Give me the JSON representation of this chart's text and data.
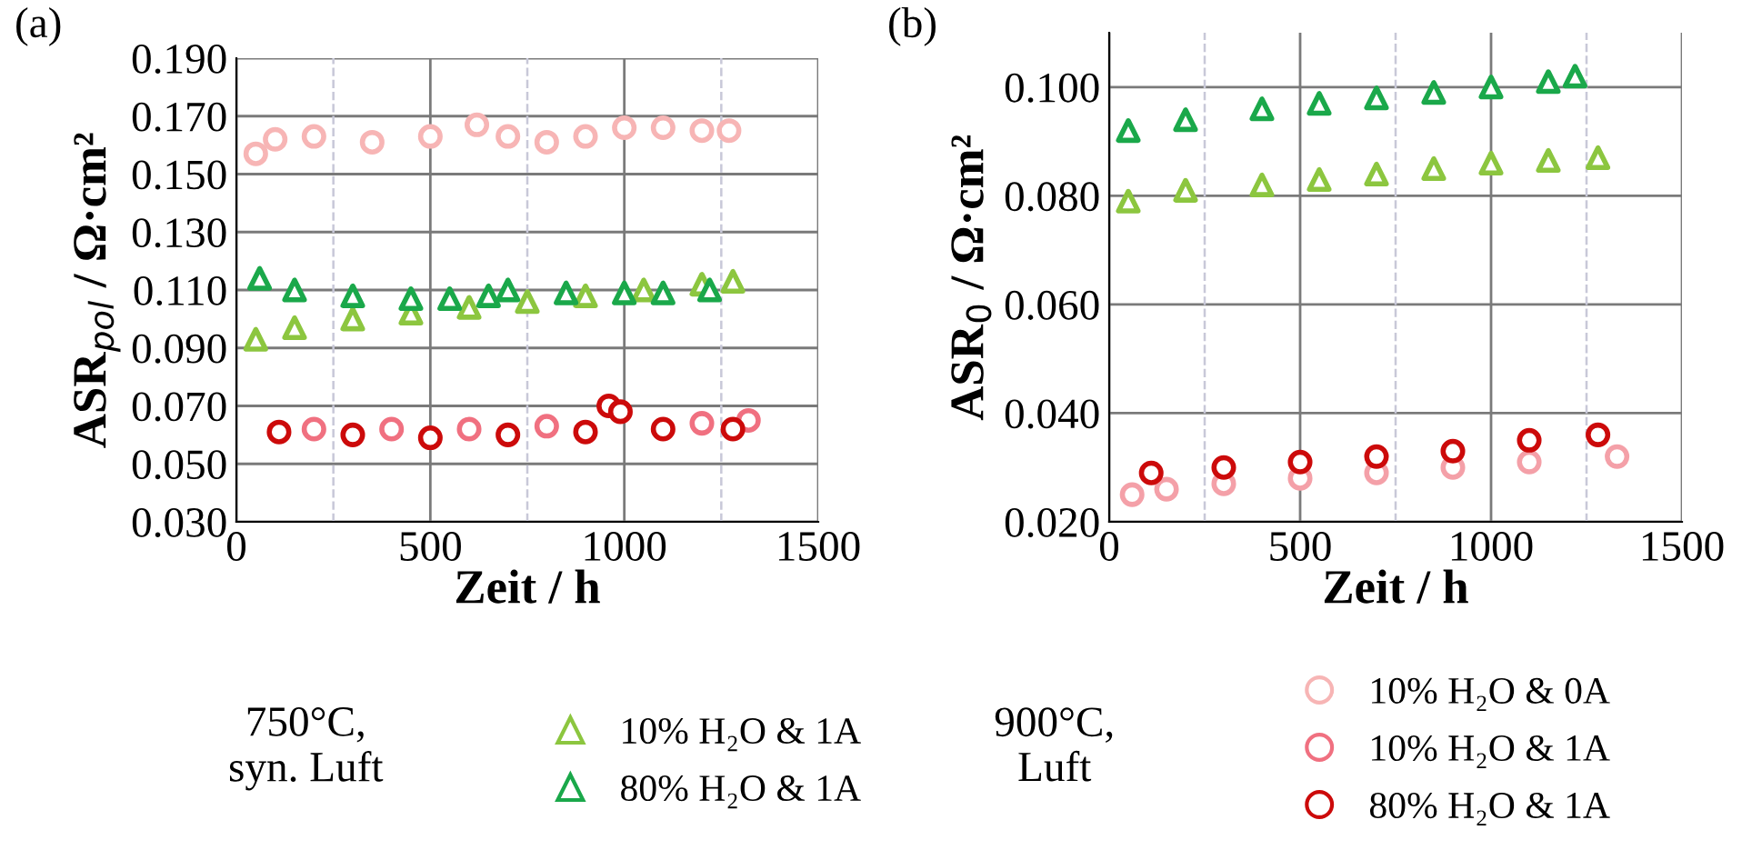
{
  "chart_data": [
    {
      "type": "scatter",
      "title": "(a)",
      "xlabel": "Zeit / h",
      "ylabel": "ASR$_{pol}$ / Ω·cm²",
      "xlim": [
        0,
        1500
      ],
      "xticks": [
        0,
        500,
        1000,
        1500
      ],
      "ylim": [
        0.03,
        0.19
      ],
      "yticks": [
        {
          "value": 0.03,
          "label": "0.030"
        },
        {
          "value": 0.05,
          "label": "0.050"
        },
        {
          "value": 0.07,
          "label": "0.070"
        },
        {
          "value": 0.09,
          "label": "0.090"
        },
        {
          "value": 0.11,
          "label": "0.110"
        },
        {
          "value": 0.13,
          "label": "0.130"
        },
        {
          "value": 0.15,
          "label": "0.150"
        },
        {
          "value": 0.17,
          "label": "0.170"
        },
        {
          "value": 0.19,
          "label": "0.190"
        }
      ],
      "grid": true,
      "legend": "bottom",
      "ref_lines": [
        {
          "axis": "x",
          "value": 250,
          "color": "#c8c8d8",
          "line_style": "dashed"
        },
        {
          "axis": "x",
          "value": 750,
          "color": "#c8c8d8",
          "line_style": "dashed"
        },
        {
          "axis": "x",
          "value": 1250,
          "color": "#c8c8d8",
          "line_style": "dashed"
        }
      ],
      "annotations": [
        "750°C,\nsyn. Luft",
        "900°C,\nLuft"
      ],
      "series": [
        {
          "name": "10% H₂O & 1A",
          "color": "#8cc63f",
          "marker": "triangle",
          "x": [
            50,
            150,
            300,
            450,
            600,
            750,
            900,
            1050,
            1200,
            1280
          ],
          "values": [
            0.093,
            0.097,
            0.1,
            0.102,
            0.104,
            0.106,
            0.108,
            0.11,
            0.112,
            0.113
          ]
        },
        {
          "name": "80% H₂O & 1A",
          "color": "#1aa84a",
          "marker": "triangle",
          "x": [
            60,
            150,
            300,
            450,
            550,
            650,
            700,
            850,
            1000,
            1100,
            1220
          ],
          "values": [
            0.114,
            0.11,
            0.108,
            0.107,
            0.107,
            0.108,
            0.11,
            0.109,
            0.109,
            0.109,
            0.11
          ]
        },
        {
          "name": "10% H₂O & 0A",
          "color": "#f7b5b5",
          "marker": "circle",
          "x": [
            50,
            100,
            200,
            350,
            500,
            620,
            700,
            800,
            900,
            1000,
            1100,
            1200,
            1270
          ],
          "values": [
            0.157,
            0.162,
            0.163,
            0.161,
            0.163,
            0.167,
            0.163,
            0.161,
            0.163,
            0.166,
            0.166,
            0.165,
            0.165
          ]
        },
        {
          "name": "10% H₂O & 1A",
          "color": "#f07080",
          "marker": "circle",
          "x": [
            200,
            400,
            600,
            800,
            1200,
            1320
          ],
          "values": [
            0.062,
            0.062,
            0.062,
            0.063,
            0.064,
            0.065
          ]
        },
        {
          "name": "80% H₂O & 1A",
          "color": "#cc0a0a",
          "marker": "circle",
          "x": [
            110,
            300,
            500,
            700,
            900,
            960,
            990,
            1100,
            1280
          ],
          "values": [
            0.061,
            0.06,
            0.059,
            0.06,
            0.061,
            0.07,
            0.068,
            0.062,
            0.062
          ]
        }
      ]
    },
    {
      "type": "scatter",
      "title": "(b)",
      "xlabel": "Zeit / h",
      "ylabel": "ASR$_{0}$ / Ω·cm²",
      "xlim": [
        0,
        1500
      ],
      "xticks": [
        0,
        500,
        1000,
        1500
      ],
      "ylim": [
        0.02,
        0.11
      ],
      "yticks": [
        {
          "value": 0.02,
          "label": "0.020"
        },
        {
          "value": 0.04,
          "label": "0.040"
        },
        {
          "value": 0.06,
          "label": "0.060"
        },
        {
          "value": 0.08,
          "label": "0.080"
        },
        {
          "value": 0.1,
          "label": "0.100"
        }
      ],
      "grid": true,
      "ref_lines": [
        {
          "axis": "x",
          "value": 250,
          "color": "#c8c8d8",
          "line_style": "dashed"
        },
        {
          "axis": "x",
          "value": 750,
          "color": "#c8c8d8",
          "line_style": "dashed"
        },
        {
          "axis": "x",
          "value": 1250,
          "color": "#c8c8d8",
          "line_style": "dashed"
        }
      ],
      "series": [
        {
          "color": "#8cc63f",
          "marker": "triangle",
          "x": [
            50,
            200,
            400,
            550,
            700,
            850,
            1000,
            1150,
            1280
          ],
          "values": [
            0.079,
            0.081,
            0.082,
            0.083,
            0.084,
            0.085,
            0.086,
            0.0865,
            0.087
          ]
        },
        {
          "color": "#1aa84a",
          "marker": "triangle",
          "x": [
            50,
            200,
            400,
            550,
            700,
            850,
            1000,
            1150,
            1220
          ],
          "values": [
            0.092,
            0.094,
            0.096,
            0.097,
            0.098,
            0.099,
            0.1,
            0.101,
            0.102
          ]
        },
        {
          "color": "#f4a0a8",
          "marker": "circle",
          "x": [
            60,
            150,
            300,
            500,
            700,
            900,
            1100,
            1330
          ],
          "values": [
            0.025,
            0.026,
            0.027,
            0.028,
            0.029,
            0.03,
            0.031,
            0.032
          ]
        },
        {
          "color": "#cc0a0a",
          "marker": "circle",
          "x": [
            110,
            300,
            500,
            700,
            900,
            1100,
            1280
          ],
          "values": [
            0.029,
            0.03,
            0.031,
            0.032,
            0.033,
            0.035,
            0.036
          ]
        }
      ]
    }
  ]
}
